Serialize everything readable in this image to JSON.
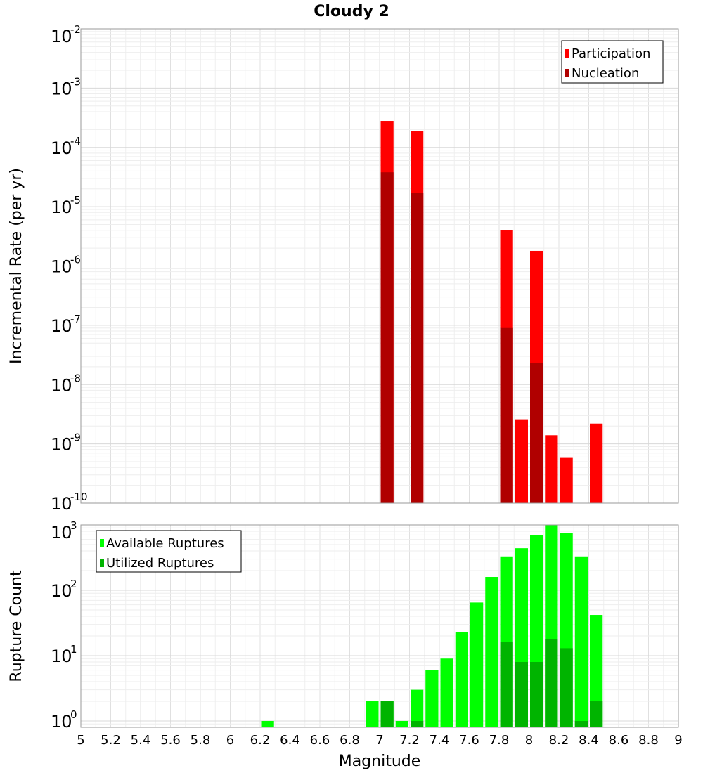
{
  "title": "Cloudy 2",
  "chart_data": [
    {
      "type": "bar",
      "ylabel": "Incremental Rate (per yr)",
      "xlabel": "",
      "scale": "log",
      "ylim": [
        1e-10,
        0.01
      ],
      "xlim": [
        5,
        9
      ],
      "bin_width": 0.1,
      "legend": "top-right",
      "grid": true,
      "y_ticks": [
        {
          "base": "10",
          "exp": "-10"
        },
        {
          "base": "10",
          "exp": "-9"
        },
        {
          "base": "10",
          "exp": "-8"
        },
        {
          "base": "10",
          "exp": "-7"
        },
        {
          "base": "10",
          "exp": "-6"
        },
        {
          "base": "10",
          "exp": "-5"
        },
        {
          "base": "10",
          "exp": "-4"
        },
        {
          "base": "10",
          "exp": "-3"
        },
        {
          "base": "10",
          "exp": "-2"
        }
      ],
      "series": [
        {
          "name": "Participation",
          "color": "#ff0000",
          "x": [
            7.05,
            7.25,
            7.85,
            7.95,
            8.05,
            8.15,
            8.25,
            8.45
          ],
          "values": [
            0.00028,
            0.00019,
            4e-06,
            2.6e-09,
            1.8e-06,
            1.4e-09,
            5.8e-10,
            2.2e-09
          ]
        },
        {
          "name": "Nucleation",
          "color": "#b00000",
          "x": [
            7.05,
            7.25,
            7.85,
            8.05
          ],
          "values": [
            3.8e-05,
            1.7e-05,
            9e-08,
            2.3e-08
          ]
        }
      ]
    },
    {
      "type": "bar",
      "ylabel": "Rupture Count",
      "xlabel": "Magnitude",
      "scale": "log",
      "ylim": [
        0.8,
        1000
      ],
      "xlim": [
        5,
        9
      ],
      "bin_width": 0.1,
      "legend": "top-left",
      "grid": true,
      "y_ticks": [
        {
          "base": "10",
          "exp": "0"
        },
        {
          "base": "10",
          "exp": "1"
        },
        {
          "base": "10",
          "exp": "2"
        },
        {
          "base": "10",
          "exp": "3"
        }
      ],
      "x_ticks": [
        "5",
        "5.2",
        "5.4",
        "5.6",
        "5.8",
        "6",
        "6.2",
        "6.4",
        "6.6",
        "6.8",
        "7",
        "7.2",
        "7.4",
        "7.6",
        "7.8",
        "8",
        "8.2",
        "8.4",
        "8.6",
        "8.8",
        "9"
      ],
      "series": [
        {
          "name": "Available Ruptures",
          "color": "#00ff00",
          "x": [
            6.25,
            6.95,
            7.05,
            7.15,
            7.25,
            7.35,
            7.45,
            7.55,
            7.65,
            7.75,
            7.85,
            7.95,
            8.05,
            8.15,
            8.25,
            8.35,
            8.45
          ],
          "values": [
            1,
            2,
            2,
            1,
            3,
            6,
            9,
            23,
            65,
            160,
            330,
            440,
            690,
            1000,
            760,
            330,
            42
          ]
        },
        {
          "name": "Utilized Ruptures",
          "color": "#00b400",
          "x": [
            7.05,
            7.25,
            7.85,
            7.95,
            8.05,
            8.15,
            8.25,
            8.35,
            8.45
          ],
          "values": [
            2,
            1,
            16,
            8,
            8,
            18,
            13,
            1,
            2
          ]
        }
      ]
    }
  ]
}
